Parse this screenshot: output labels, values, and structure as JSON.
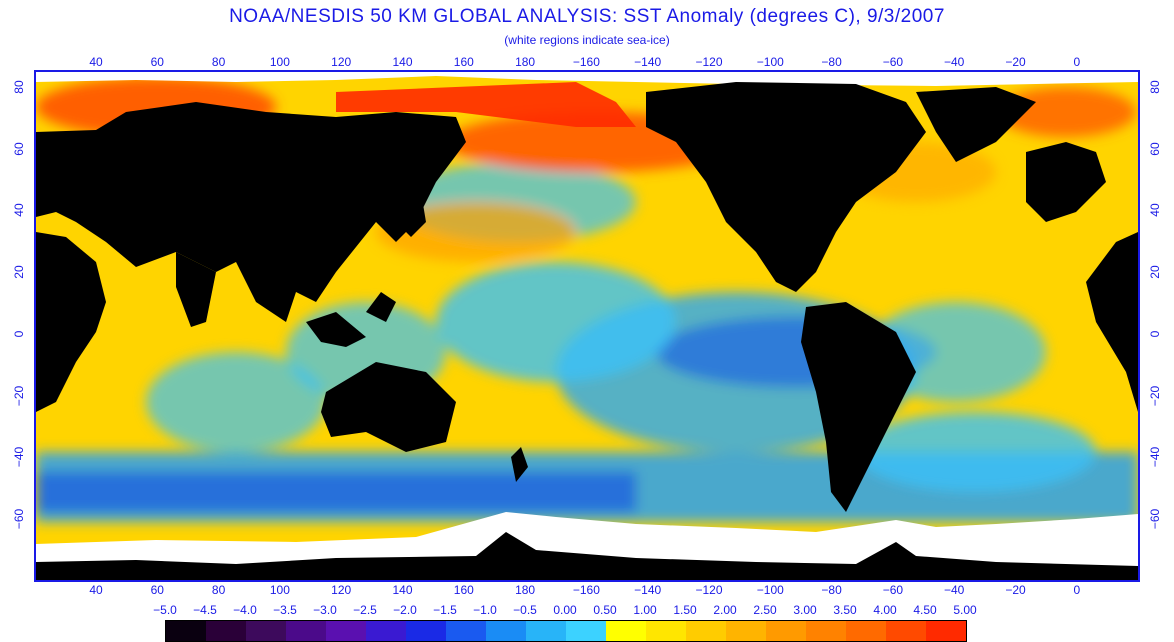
{
  "title": "NOAA/NESDIS 50 KM GLOBAL ANALYSIS: SST Anomaly (degrees C), 9/3/2007",
  "subtitle": "(white regions indicate sea-ice)",
  "lon_labels": [
    "40",
    "60",
    "80",
    "100",
    "120",
    "140",
    "160",
    "180",
    "−160",
    "−140",
    "−120",
    "−100",
    "−80",
    "−60",
    "−40",
    "−20",
    "0"
  ],
  "lat_labels": [
    "80",
    "60",
    "40",
    "20",
    "0",
    "−20",
    "−40",
    "−60"
  ],
  "legend": {
    "labels": [
      "−5.0",
      "−4.5",
      "−4.0",
      "−3.5",
      "−3.0",
      "−2.5",
      "−2.0",
      "−1.5",
      "−1.0",
      "−0.5",
      "0.00",
      "0.50",
      "1.00",
      "1.50",
      "2.00",
      "2.50",
      "3.00",
      "3.50",
      "4.00",
      "4.50",
      "5.00"
    ],
    "colors": [
      "#0a0010",
      "#2a0038",
      "#3d0a5c",
      "#4b0a8a",
      "#5a10b0",
      "#3a1ad2",
      "#1a2ae6",
      "#1a5af0",
      "#1a8cf5",
      "#28b4f8",
      "#3cd2ff",
      "#ffff00",
      "#ffe600",
      "#ffcc00",
      "#ffb400",
      "#ff9a00",
      "#ff8200",
      "#ff6a00",
      "#ff4a00",
      "#ff2a00",
      "#ff0000"
    ]
  },
  "colors": {
    "land": "#000000",
    "ice": "#ffffff",
    "frame": "#1a1ae6"
  }
}
